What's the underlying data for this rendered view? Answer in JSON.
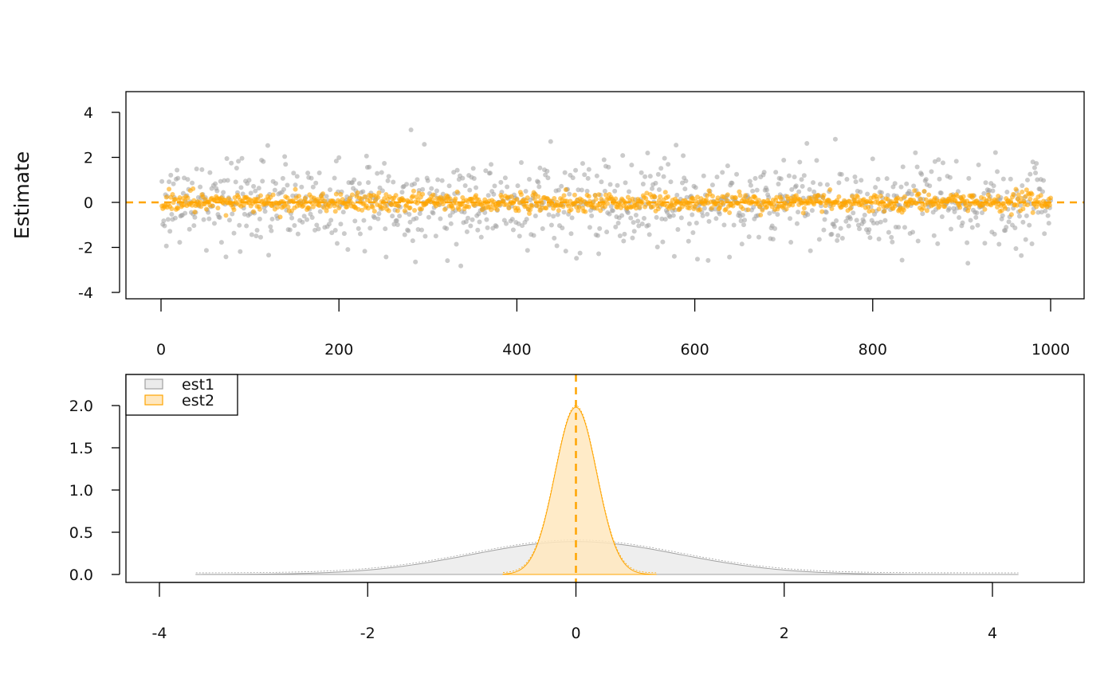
{
  "chart_data": [
    {
      "type": "scatter",
      "ylabel": "Estimate",
      "xlabel": "",
      "title": "",
      "xlim": [
        0,
        1000
      ],
      "ylim": [
        -4,
        4
      ],
      "x_ticks": [
        0,
        200,
        400,
        600,
        800,
        1000
      ],
      "y_ticks": [
        -4,
        -2,
        0,
        2,
        4
      ],
      "reference_line": {
        "y": 0,
        "style": "dashed",
        "color": "#FFA500"
      },
      "n_points_per_series": 1000,
      "series": [
        {
          "name": "est1",
          "color": "#A0A0A0",
          "mean": 0,
          "sd": 1.0,
          "range": [
            -3.0,
            3.6
          ]
        },
        {
          "name": "est2",
          "color": "#FFA500",
          "mean": 0,
          "sd": 0.2,
          "range": [
            -0.65,
            0.75
          ]
        }
      ],
      "grid": false
    },
    {
      "type": "area",
      "title": "",
      "xlabel": "",
      "ylabel": "",
      "xlim": [
        -4,
        4
      ],
      "ylim": [
        0,
        2.0
      ],
      "x_ticks": [
        -4,
        -2,
        0,
        2,
        4
      ],
      "y_ticks": [
        0.0,
        0.5,
        1.0,
        1.5,
        2.0
      ],
      "x_tick_labels": [
        "-4",
        "-2",
        "0",
        "2",
        "4"
      ],
      "y_tick_labels": [
        "0.0",
        "0.5",
        "1.0",
        "1.5",
        "2.0"
      ],
      "reference_line": {
        "x": 0,
        "style": "dashed",
        "color": "#FFA500"
      },
      "legend": {
        "position": "top-left",
        "entries": [
          "est1",
          "est2"
        ]
      },
      "series": [
        {
          "name": "est1",
          "fill": "#EBEBEB",
          "stroke": "#A0A0A0",
          "mean": 0,
          "sd": 1.0,
          "peak": 0.39,
          "x_range": [
            -3.65,
            4.25
          ]
        },
        {
          "name": "est2",
          "fill": "#FFE7BE",
          "stroke": "#FFA500",
          "mean": 0,
          "sd": 0.2,
          "peak": 1.98,
          "x_range": [
            -0.7,
            0.77
          ]
        }
      ],
      "grid": false
    }
  ]
}
